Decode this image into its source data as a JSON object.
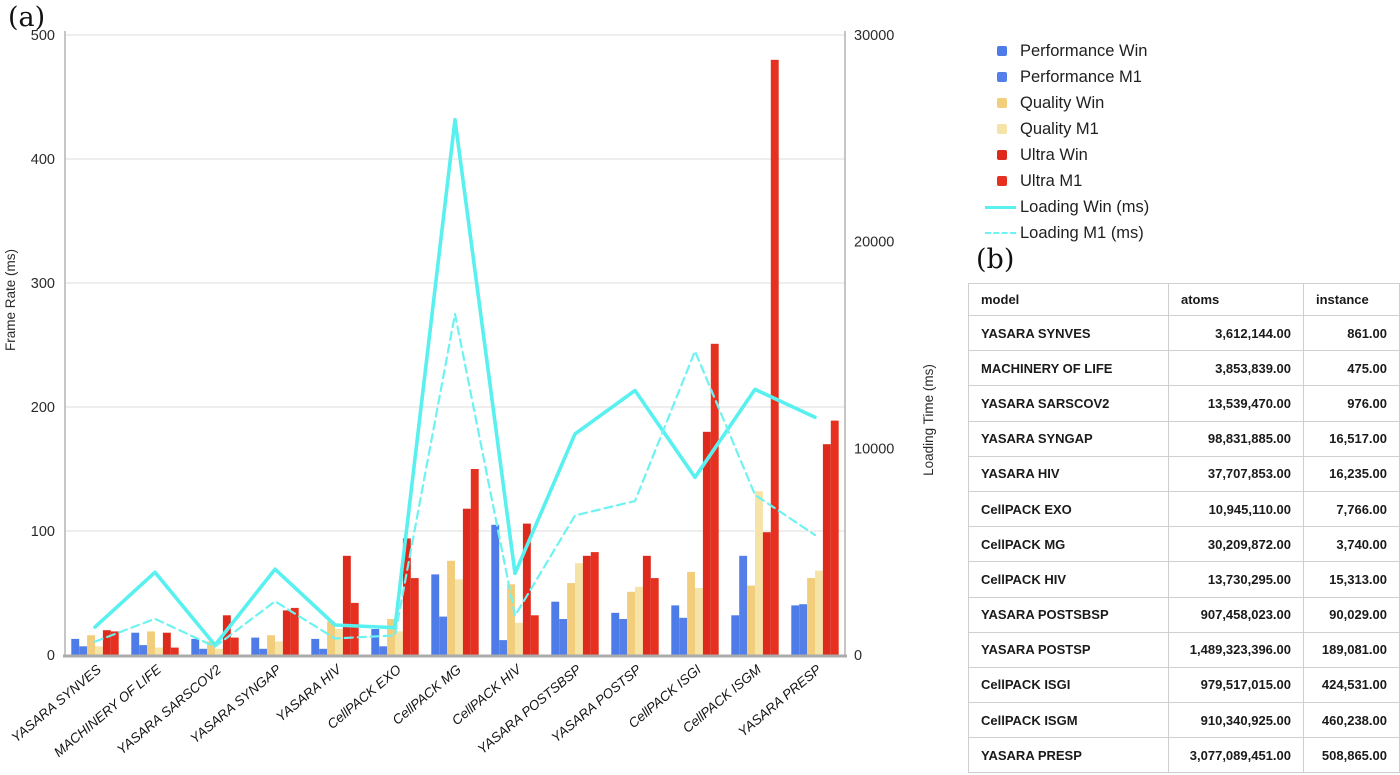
{
  "panels": {
    "a": "(a)",
    "b": "(b)"
  },
  "chart_data": {
    "type": "bar",
    "combo": "grouped bars with dual-axis lines",
    "title": "",
    "categories": [
      "YASARA SYNVES",
      "MACHINERY OF LIFE",
      "YASARA SARSCOV2",
      "YASARA SYNGAP",
      "YASARA HIV",
      "CellPACK EXO",
      "CellPACK MG",
      "CellPACK HIV",
      "YASARA POSTSBSP",
      "YASARA POSTSP",
      "CellPACK ISGI",
      "CellPACK ISGM",
      "YASARA PRESP"
    ],
    "left_axis": {
      "label": "Frame Rate (ms)",
      "min": 0,
      "max": 500,
      "step": 100,
      "ticks": [
        0,
        100,
        200,
        300,
        400,
        500
      ]
    },
    "right_axis": {
      "label": "Loading Time (ms)",
      "min": 0,
      "max": 30000,
      "step": 10000,
      "ticks": [
        0,
        10000,
        20000,
        30000
      ]
    },
    "grid": true,
    "legend_position": "right",
    "series": [
      {
        "name": "Performance Win",
        "type": "bar",
        "axis": "left",
        "color": "#4d7be8",
        "values": [
          13,
          18,
          13,
          14,
          13,
          21,
          65,
          105,
          43,
          34,
          40,
          32,
          40
        ]
      },
      {
        "name": "Performance M1",
        "type": "bar",
        "axis": "left",
        "color": "#547fe9",
        "values": [
          7,
          8,
          5,
          5,
          5,
          7,
          31,
          12,
          29,
          29,
          30,
          80,
          41
        ]
      },
      {
        "name": "Quality Win",
        "type": "bar",
        "axis": "left",
        "color": "#f2ce7c",
        "values": [
          16,
          19,
          11,
          16,
          27,
          29,
          76,
          57,
          58,
          51,
          67,
          56,
          62
        ]
      },
      {
        "name": "Quality M1",
        "type": "bar",
        "axis": "left",
        "color": "#f6e3a7",
        "values": [
          7,
          6,
          5,
          11,
          21,
          19,
          61,
          26,
          74,
          55,
          54,
          132,
          68
        ]
      },
      {
        "name": "Ultra Win",
        "type": "bar",
        "axis": "left",
        "color": "#dd2a1c",
        "values": [
          20,
          18,
          32,
          36,
          80,
          94,
          118,
          106,
          80,
          80,
          180,
          99,
          170
        ]
      },
      {
        "name": "Ultra M1",
        "type": "bar",
        "axis": "left",
        "color": "#e63120",
        "values": [
          19,
          6,
          14,
          38,
          42,
          62,
          150,
          32,
          83,
          62,
          251,
          480,
          189
        ]
      },
      {
        "name": "Loading Win (ms)",
        "type": "line",
        "axis": "right",
        "style": "solid",
        "color": "#59f0f0",
        "values": [
          1350,
          4000,
          480,
          4150,
          1450,
          1320,
          25900,
          3950,
          10700,
          12800,
          8600,
          12850,
          11500
        ]
      },
      {
        "name": "Loading M1 (ms)",
        "type": "line",
        "axis": "right",
        "style": "dashed",
        "color": "#6ef2f2",
        "values": [
          650,
          1750,
          400,
          2600,
          800,
          950,
          16500,
          1900,
          6750,
          7450,
          14700,
          7750,
          5800
        ]
      }
    ]
  },
  "table": {
    "headers": [
      "model",
      "atoms",
      "instance"
    ],
    "rows": [
      [
        "YASARA SYNVES",
        "3,612,144.00",
        "861.00"
      ],
      [
        "MACHINERY OF LIFE",
        "3,853,839.00",
        "475.00"
      ],
      [
        "YASARA SARSCOV2",
        "13,539,470.00",
        "976.00"
      ],
      [
        "YASARA SYNGAP",
        "98,831,885.00",
        "16,517.00"
      ],
      [
        "YASARA HIV",
        "37,707,853.00",
        "16,235.00"
      ],
      [
        "CellPACK EXO",
        "10,945,110.00",
        "7,766.00"
      ],
      [
        "CellPACK MG",
        "30,209,872.00",
        "3,740.00"
      ],
      [
        "CellPACK HIV",
        "13,730,295.00",
        "15,313.00"
      ],
      [
        "YASARA POSTSBSP",
        "907,458,023.00",
        "90,029.00"
      ],
      [
        "YASARA POSTSP",
        "1,489,323,396.00",
        "189,081.00"
      ],
      [
        "CellPACK ISGI",
        "979,517,015.00",
        "424,531.00"
      ],
      [
        "CellPACK ISGM",
        "910,340,925.00",
        "460,238.00"
      ],
      [
        "YASARA PRESP",
        "3,077,089,451.00",
        "508,865.00"
      ]
    ]
  }
}
